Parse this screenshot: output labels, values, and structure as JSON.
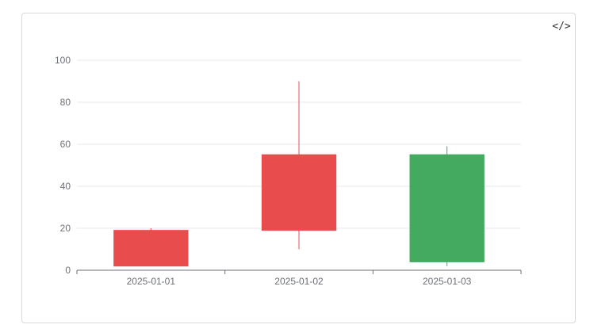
{
  "toolbar": {
    "code_icon_label": "</>"
  },
  "chart_data": {
    "type": "candlestick",
    "categories": [
      "2025-01-01",
      "2025-01-02",
      "2025-01-03"
    ],
    "ylim": [
      0,
      100
    ],
    "yticks": [
      0,
      20,
      40,
      60,
      80,
      100
    ],
    "grid": true,
    "series": [
      {
        "data": [
          {
            "open": 2,
            "close": 19,
            "low": 2,
            "high": 20
          },
          {
            "open": 19,
            "close": 55,
            "low": 10,
            "high": 90
          },
          {
            "open": 55,
            "close": 4,
            "low": 2,
            "high": 59
          }
        ]
      }
    ],
    "colors": {
      "up": "#e84c4c",
      "down": "#43aa5f",
      "grid": "#e6e8ee",
      "axis": "#6e7079"
    }
  }
}
